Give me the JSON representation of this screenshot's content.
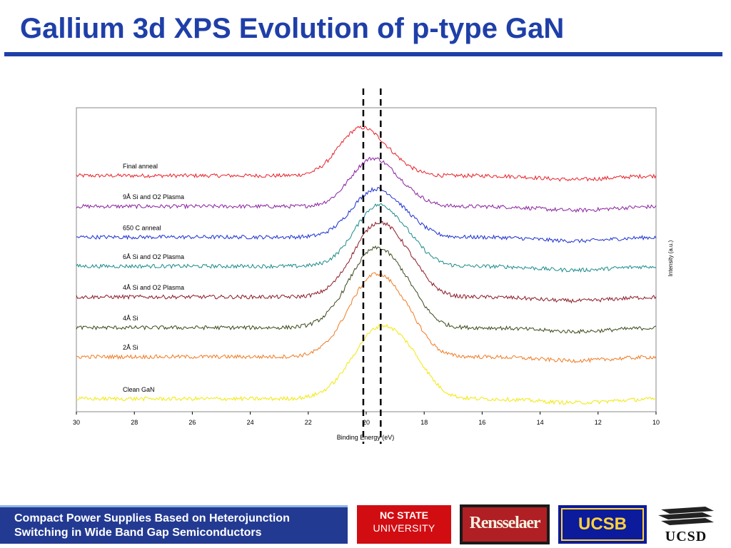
{
  "slide": {
    "title": "Gallium 3d XPS Evolution of p-type GaN",
    "footer_line1": "Compact Power Supplies Based on Heterojunction",
    "footer_line2": "Switching in Wide Band Gap Semiconductors",
    "colors": {
      "title": "#1f3fa8",
      "footer_bg": "#233a92"
    }
  },
  "logos": {
    "ncstate_line1": "NC STATE",
    "ncstate_line2": "UNIVERSITY",
    "rensselaer": "Rensselaer",
    "ucsb": "UCSB",
    "ucsd": "UCSD"
  },
  "chart_data": {
    "type": "line",
    "title": "",
    "xlabel": "Binding Energy (eV)",
    "ylabel": "Intensity (a.u.)",
    "xlim": [
      30,
      10
    ],
    "x_reversed": true,
    "x_ticks": [
      30,
      28,
      26,
      24,
      22,
      20,
      18,
      16,
      14,
      12,
      10
    ],
    "y_ticks_shown": false,
    "grid": false,
    "reference_lines_eV": [
      20.1,
      19.5
    ],
    "peak_definition": "x = binding energy (eV), y = intensity (a.u.)",
    "series": [
      {
        "name": "Final anneal",
        "color": "#e8202a",
        "offset": 7.3,
        "peak_x": 20.2,
        "peak_height": 1.45,
        "peak_width": 0.75,
        "baseline_tail": [
          30,
          0.0,
          10,
          0.0
        ]
      },
      {
        "name": "9Å Si and O2 Plasma",
        "color": "#8a1fa0",
        "offset": 6.35,
        "peak_x": 19.8,
        "peak_height": 1.45,
        "peak_width": 0.75,
        "baseline_tail": [
          30,
          0.0,
          10,
          0.0
        ]
      },
      {
        "name": "650 C anneal",
        "color": "#1a2fd0",
        "offset": 5.4,
        "peak_x": 19.7,
        "peak_height": 1.45,
        "peak_width": 0.8,
        "baseline_tail": [
          30,
          0.0,
          10,
          0.0
        ]
      },
      {
        "name": "6Å Si and O2 Plasma",
        "color": "#1a8b8b",
        "offset": 4.5,
        "peak_x": 19.6,
        "peak_height": 1.85,
        "peak_width": 0.8,
        "baseline_tail": [
          30,
          0.0,
          10,
          0.0
        ]
      },
      {
        "name": "4Å Si and O2 Plasma",
        "color": "#8b1a24",
        "offset": 3.55,
        "peak_x": 19.6,
        "peak_height": 2.25,
        "peak_width": 0.85,
        "baseline_tail": [
          30,
          0.0,
          10,
          0.0
        ]
      },
      {
        "name": "4Å Si",
        "color": "#3a4a1a",
        "offset": 2.6,
        "peak_x": 19.7,
        "peak_height": 2.4,
        "peak_width": 0.9,
        "baseline_tail": [
          30,
          0.0,
          10,
          0.0
        ]
      },
      {
        "name": "2Å Si",
        "color": "#f07a22",
        "offset": 1.7,
        "peak_x": 19.7,
        "peak_height": 2.5,
        "peak_width": 0.9,
        "baseline_tail": [
          30,
          0.0,
          10,
          0.0
        ]
      },
      {
        "name": "Clean GaN",
        "color": "#f2e80a",
        "offset": 0.4,
        "peak_x": 19.5,
        "peak_height": 2.2,
        "peak_width": 0.95,
        "baseline_tail": [
          30,
          0.0,
          10,
          0.0
        ]
      }
    ]
  }
}
